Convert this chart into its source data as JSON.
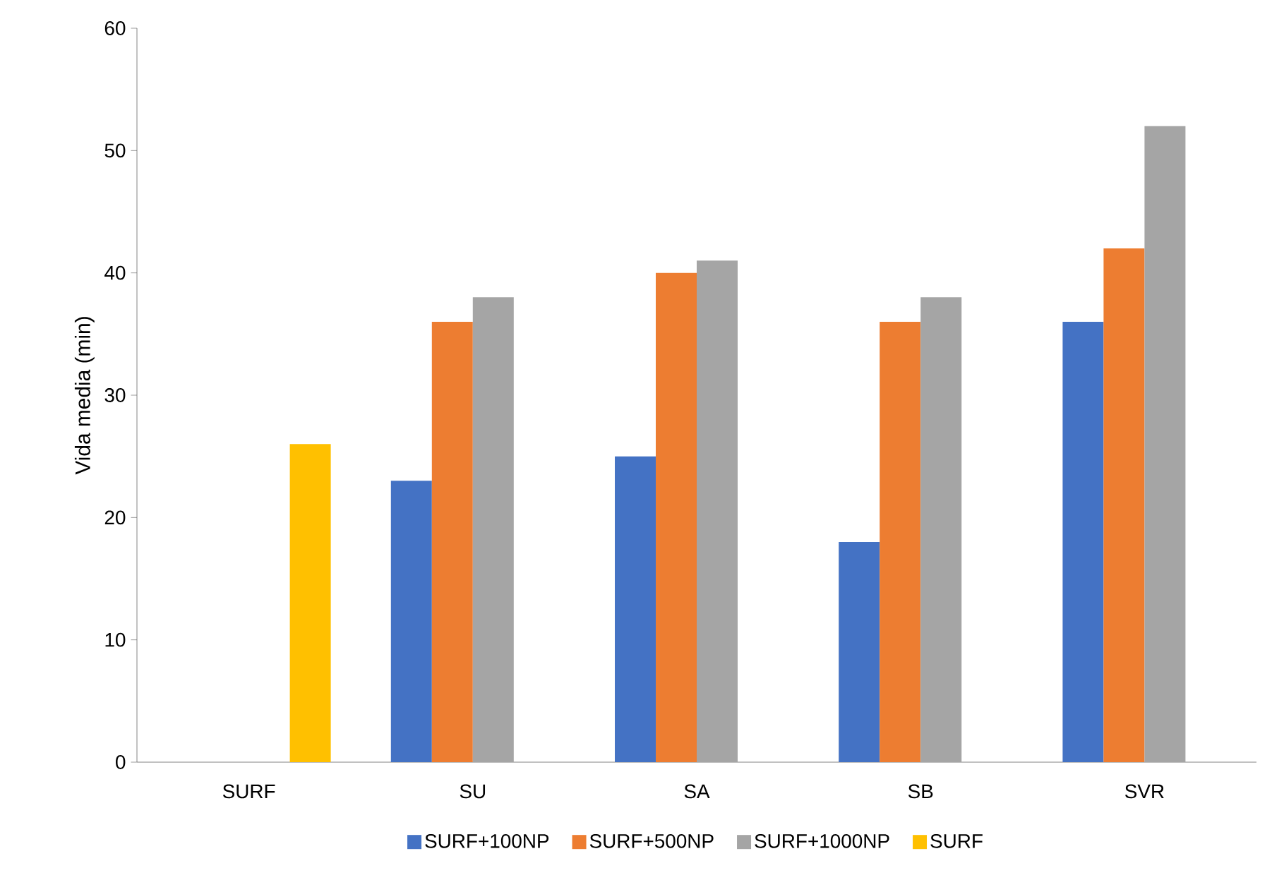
{
  "chart_data": {
    "type": "bar",
    "ylabel": "Vida media (min)",
    "categories": [
      "SURF",
      "SU",
      "SA",
      "SB",
      "SVR"
    ],
    "series": [
      {
        "name": "SURF+100NP",
        "color": "#4472c4",
        "values": [
          null,
          23,
          25,
          18,
          36
        ]
      },
      {
        "name": "SURF+500NP",
        "color": "#ed7d31",
        "values": [
          null,
          36,
          40,
          36,
          42
        ]
      },
      {
        "name": "SURF+1000NP",
        "color": "#a5a5a5",
        "values": [
          null,
          38,
          41,
          38,
          52
        ]
      },
      {
        "name": "SURF",
        "color": "#ffc000",
        "values": [
          26,
          null,
          null,
          null,
          null
        ]
      }
    ],
    "ylim": [
      0,
      60
    ],
    "yticks": [
      0,
      10,
      20,
      30,
      40,
      50,
      60
    ],
    "grid": false,
    "legend": "bottom"
  }
}
